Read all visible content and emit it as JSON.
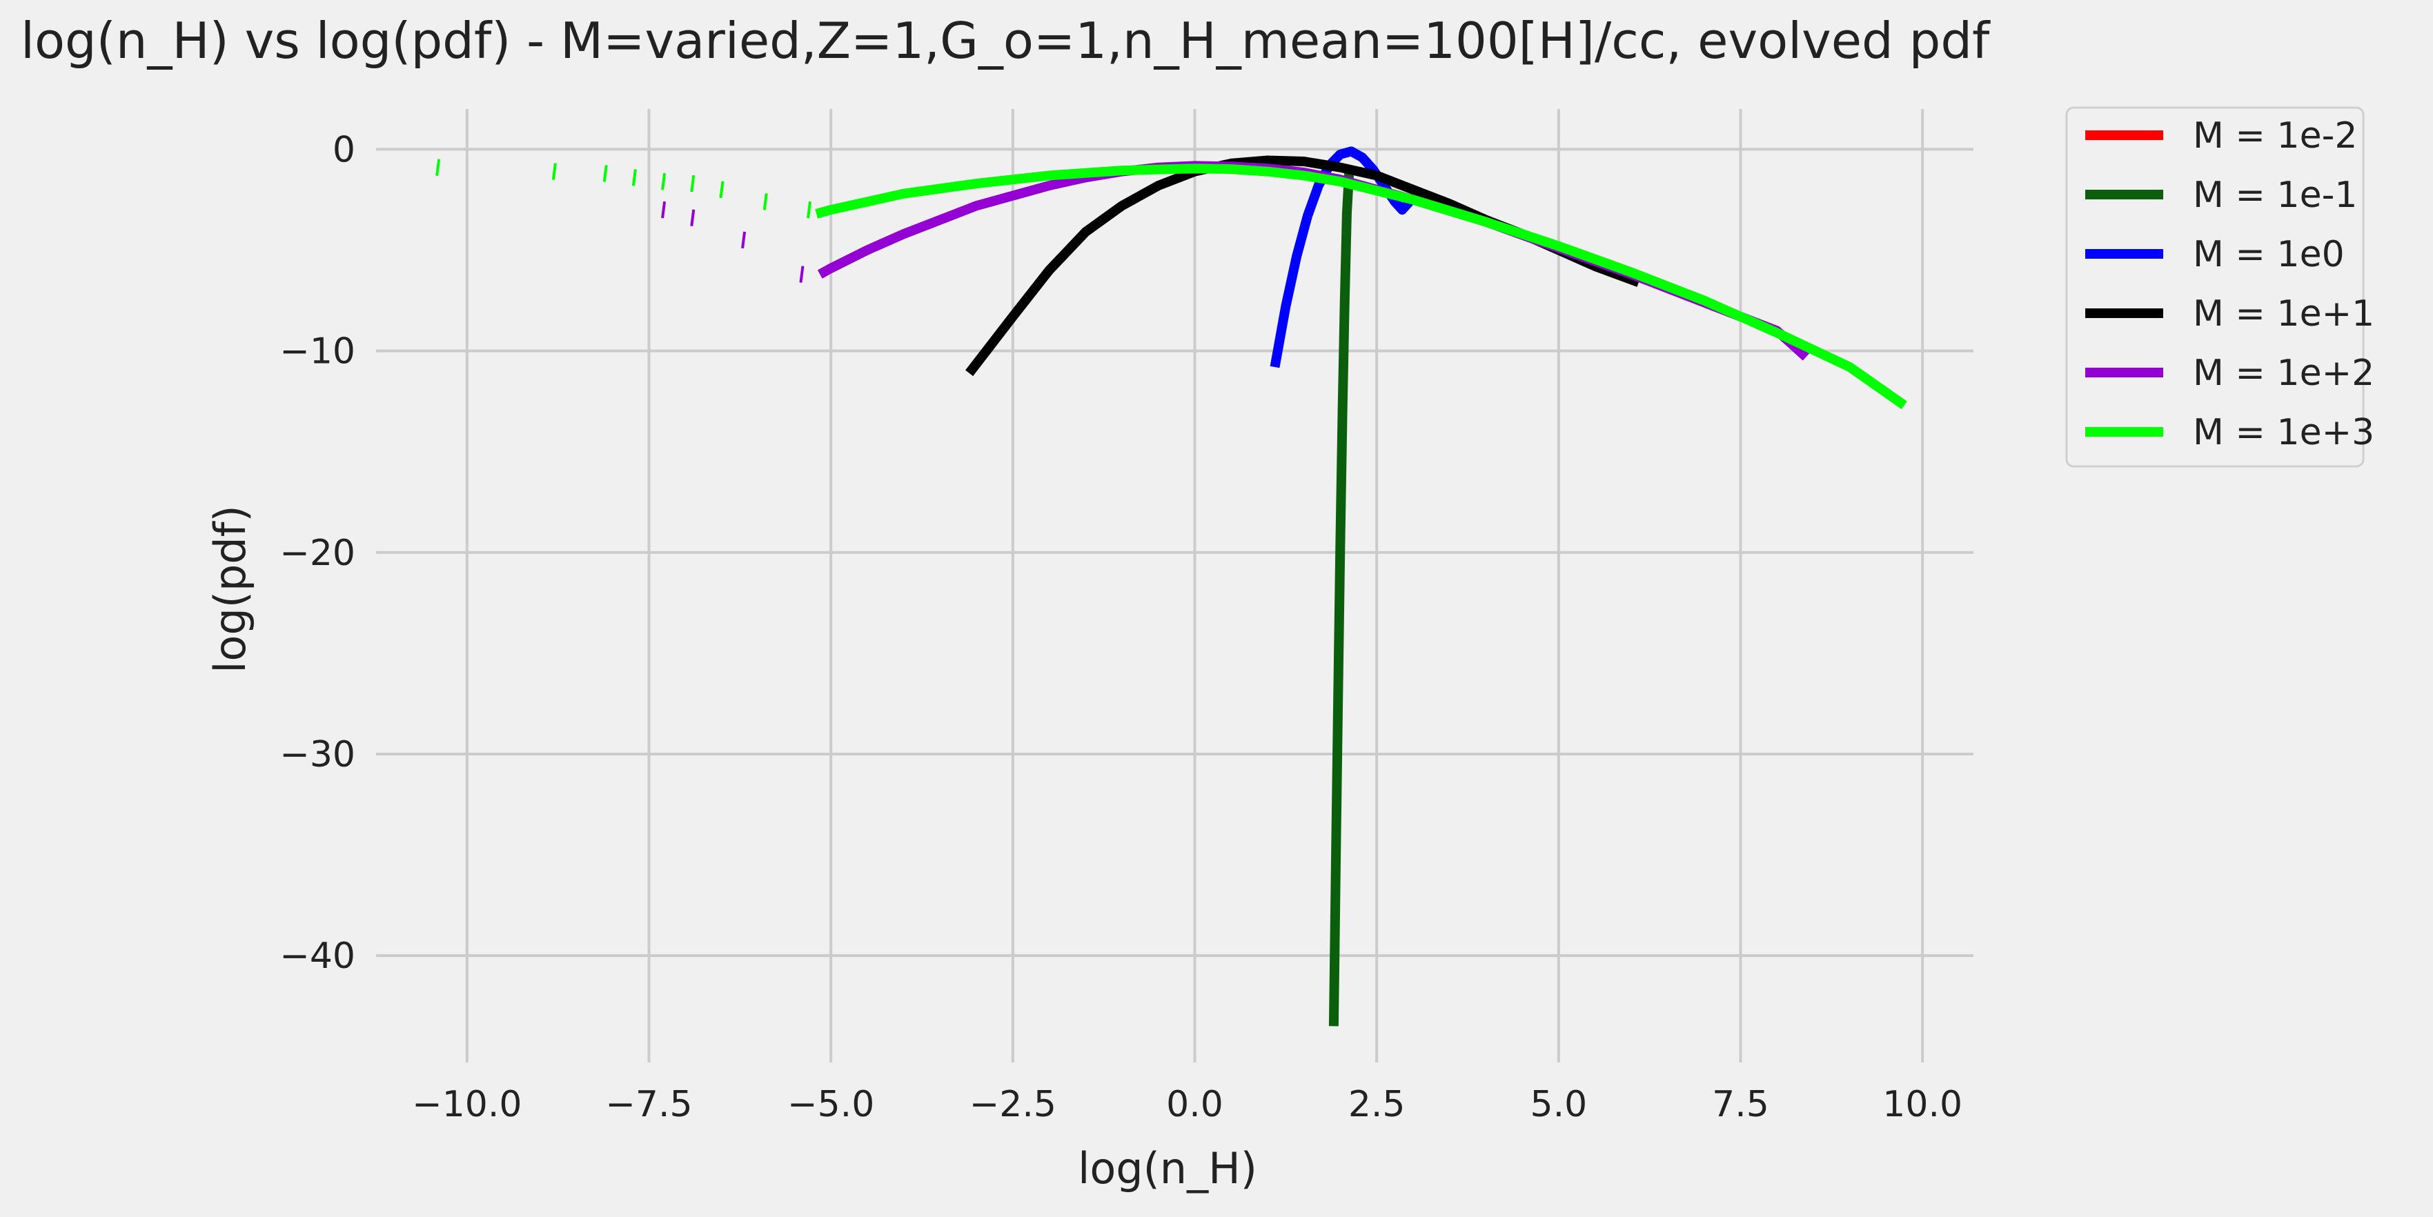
{
  "chart_data": {
    "type": "line",
    "title": "log(n_H) vs log(pdf) - M=varied,Z=1,G_o=1,n_H_mean=100[H]/cc, evolved pdf",
    "xlabel": "log(n_H)",
    "ylabel": "log(pdf)",
    "xlim": [
      -11.25,
      10.7
    ],
    "ylim": [
      -45.3,
      2.0
    ],
    "xticks": [
      -10.0,
      -7.5,
      -5.0,
      -2.5,
      0.0,
      2.5,
      5.0,
      7.5,
      10.0
    ],
    "xtick_labels": [
      "−10.0",
      "−7.5",
      "−5.0",
      "−2.5",
      "0.0",
      "2.5",
      "5.0",
      "7.5",
      "10.0"
    ],
    "yticks": [
      0,
      -10,
      -20,
      -30,
      -40
    ],
    "ytick_labels": [
      "0",
      "−10",
      "−20",
      "−30",
      "−40"
    ],
    "grid": true,
    "legend_position": "outside-top-right",
    "series": [
      {
        "name": "M = 1e-2",
        "color": "#ff0000",
        "points": []
      },
      {
        "name": "M = 1e-1",
        "color": "#0b5e0b",
        "points": [
          [
            1.91,
            -43.5
          ],
          [
            1.94,
            -35.0
          ],
          [
            1.97,
            -27.0
          ],
          [
            2.0,
            -19.5
          ],
          [
            2.03,
            -13.0
          ],
          [
            2.06,
            -7.5
          ],
          [
            2.09,
            -3.2
          ],
          [
            2.12,
            -1.2
          ]
        ]
      },
      {
        "name": "M = 1e0",
        "color": "#0000ff",
        "points": [
          [
            1.1,
            -10.8
          ],
          [
            1.25,
            -7.8
          ],
          [
            1.4,
            -5.3
          ],
          [
            1.55,
            -3.3
          ],
          [
            1.7,
            -1.8
          ],
          [
            1.85,
            -0.8
          ],
          [
            2.0,
            -0.25
          ],
          [
            2.15,
            -0.1
          ],
          [
            2.3,
            -0.4
          ],
          [
            2.45,
            -1.0
          ],
          [
            2.6,
            -1.8
          ],
          [
            2.75,
            -2.6
          ],
          [
            2.85,
            -3.0
          ],
          [
            2.95,
            -2.6
          ]
        ]
      },
      {
        "name": "M = 1e+1",
        "color": "#000000",
        "points": [
          [
            -3.1,
            -11.1
          ],
          [
            -2.5,
            -8.3
          ],
          [
            -2.0,
            -6.0
          ],
          [
            -1.5,
            -4.1
          ],
          [
            -1.0,
            -2.8
          ],
          [
            -0.5,
            -1.8
          ],
          [
            0.0,
            -1.1
          ],
          [
            0.5,
            -0.7
          ],
          [
            1.0,
            -0.55
          ],
          [
            1.5,
            -0.6
          ],
          [
            2.0,
            -0.9
          ],
          [
            2.5,
            -1.3
          ],
          [
            3.0,
            -2.0
          ],
          [
            3.5,
            -2.7
          ],
          [
            4.0,
            -3.5
          ],
          [
            4.5,
            -4.2
          ],
          [
            5.0,
            -5.0
          ],
          [
            5.5,
            -5.8
          ],
          [
            6.1,
            -6.6
          ]
        ]
      },
      {
        "name": "M = 1e+2",
        "color": "#9400d3",
        "points": [
          [
            -5.15,
            -6.2
          ],
          [
            -5.0,
            -5.9
          ],
          [
            -4.5,
            -5.0
          ],
          [
            -4.0,
            -4.2
          ],
          [
            -3.5,
            -3.5
          ],
          [
            -3.0,
            -2.8
          ],
          [
            -2.5,
            -2.3
          ],
          [
            -2.0,
            -1.8
          ],
          [
            -1.5,
            -1.4
          ],
          [
            -1.0,
            -1.1
          ],
          [
            -0.5,
            -0.9
          ],
          [
            0.0,
            -0.82
          ],
          [
            0.5,
            -0.85
          ],
          [
            1.0,
            -0.95
          ],
          [
            1.5,
            -1.15
          ],
          [
            2.0,
            -1.5
          ],
          [
            3.0,
            -2.5
          ],
          [
            4.0,
            -3.6
          ],
          [
            5.0,
            -4.9
          ],
          [
            6.0,
            -6.2
          ],
          [
            7.0,
            -7.6
          ],
          [
            8.0,
            -9.0
          ],
          [
            8.4,
            -10.3
          ]
        ]
      },
      {
        "name": "M = 1e+3",
        "color": "#00ff00",
        "points": [
          [
            -5.2,
            -3.2
          ],
          [
            -5.0,
            -3.0
          ],
          [
            -4.5,
            -2.6
          ],
          [
            -4.0,
            -2.2
          ],
          [
            -3.0,
            -1.7
          ],
          [
            -2.0,
            -1.3
          ],
          [
            -1.0,
            -1.05
          ],
          [
            0.0,
            -0.95
          ],
          [
            0.5,
            -0.98
          ],
          [
            1.0,
            -1.1
          ],
          [
            1.5,
            -1.3
          ],
          [
            2.0,
            -1.6
          ],
          [
            3.0,
            -2.5
          ],
          [
            4.0,
            -3.6
          ],
          [
            5.0,
            -4.8
          ],
          [
            6.0,
            -6.1
          ],
          [
            7.0,
            -7.5
          ],
          [
            8.0,
            -9.1
          ],
          [
            9.0,
            -10.8
          ],
          [
            9.75,
            -12.7
          ]
        ]
      }
    ],
    "scatter_fragments": [
      {
        "series": "M = 1e+3",
        "color": "#00ff00",
        "points": [
          [
            -10.4,
            -0.9
          ],
          [
            -8.8,
            -1.1
          ],
          [
            -8.1,
            -1.2
          ],
          [
            -7.7,
            -1.4
          ],
          [
            -7.3,
            -1.6
          ],
          [
            -6.9,
            -1.7
          ],
          [
            -6.5,
            -2.0
          ],
          [
            -5.9,
            -2.6
          ],
          [
            -5.3,
            -3.0
          ]
        ]
      },
      {
        "series": "M = 1e+2",
        "color": "#9400d3",
        "points": [
          [
            -7.3,
            -3.0
          ],
          [
            -6.9,
            -3.4
          ],
          [
            -6.2,
            -4.5
          ],
          [
            -5.4,
            -6.2
          ]
        ]
      }
    ]
  }
}
